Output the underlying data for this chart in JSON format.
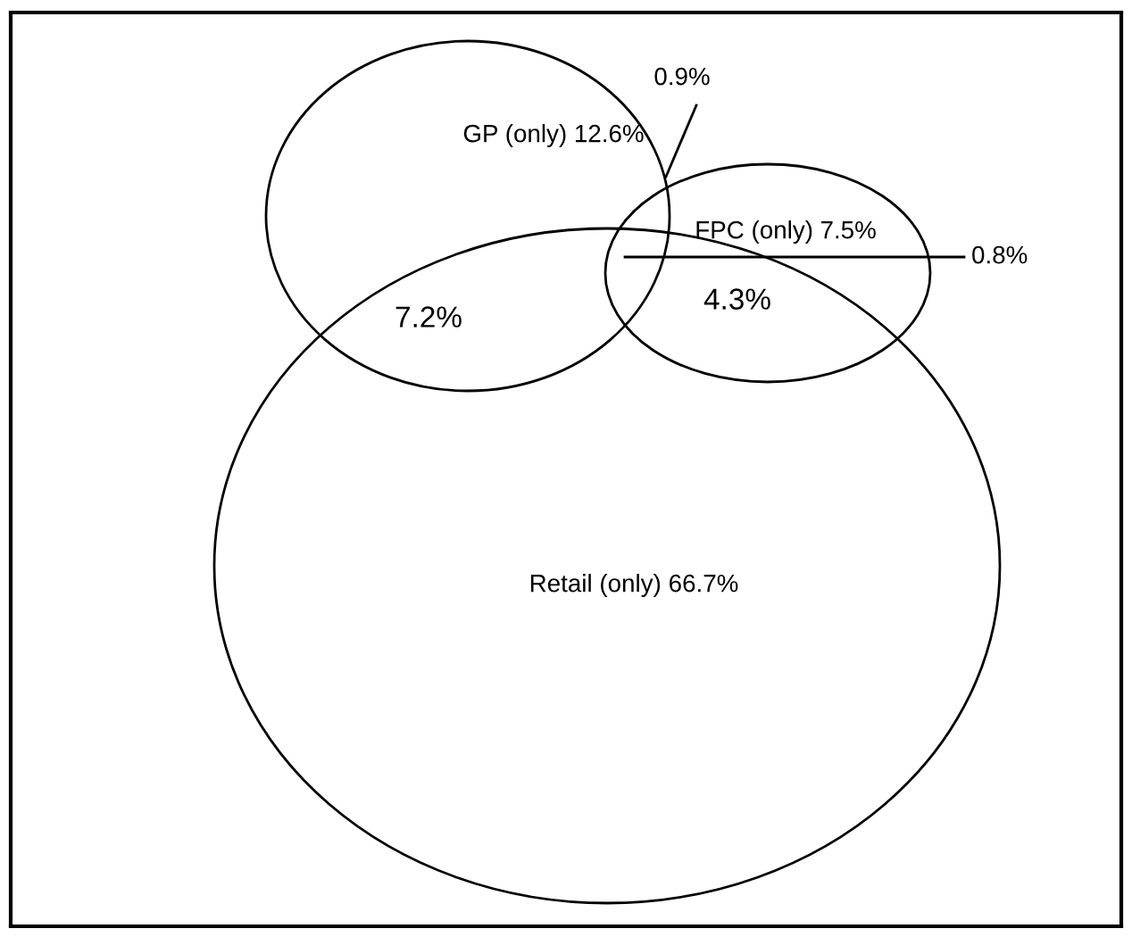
{
  "chart_data": {
    "type": "other",
    "categories": [
      "GP (only)",
      "FPC (only)",
      "Retail (only)"
    ],
    "values": [
      12.6,
      7.5,
      66.7
    ],
    "value_labels": [
      "12.6%",
      "7.5%",
      "66.7%"
    ],
    "annotations": [
      "7.2%",
      "4.3%",
      "0.9%",
      "0.8%"
    ]
  }
}
